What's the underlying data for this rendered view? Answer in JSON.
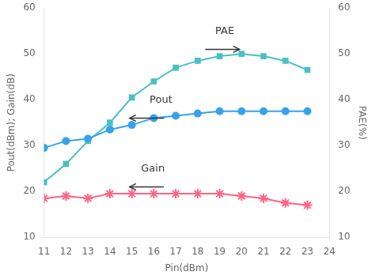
{
  "chart_data": {
    "type": "line",
    "x": [
      11,
      12,
      13,
      14,
      15,
      16,
      17,
      18,
      19,
      20,
      21,
      22,
      23
    ],
    "series": [
      {
        "name": "Pout",
        "values": [
          29.5,
          31.0,
          31.5,
          33.5,
          34.5,
          36.0,
          36.5,
          37.0,
          37.5,
          37.5,
          37.5,
          37.5,
          37.5
        ],
        "marker": "circle",
        "line_style": "solid"
      },
      {
        "name": "Gain",
        "values": [
          18.5,
          19.0,
          18.5,
          19.5,
          19.5,
          19.5,
          19.5,
          19.5,
          19.5,
          19.0,
          18.5,
          17.5,
          17.0
        ],
        "marker": "star",
        "line_style": "solid"
      },
      {
        "name": "PAE",
        "values": [
          22.0,
          26.0,
          31.0,
          35.0,
          40.5,
          44.0,
          47.0,
          48.5,
          49.5,
          50.0,
          49.5,
          48.5,
          46.5
        ],
        "marker": "square",
        "line_style": "solid",
        "axis": "y2"
      }
    ],
    "xlabel": "Pin(dBm)",
    "ylabel": "Pout(dBm); Gain(dB)",
    "y2label": "PAE(%)",
    "xlim": [
      11,
      24
    ],
    "xticks": [
      11,
      12,
      13,
      14,
      15,
      16,
      17,
      18,
      19,
      20,
      21,
      22,
      23,
      24
    ],
    "ylim": [
      10,
      60
    ],
    "yticks": [
      10,
      20,
      30,
      40,
      50,
      60
    ],
    "y2lim": [
      10,
      60
    ],
    "y2ticks": [
      10,
      20,
      30,
      40,
      50,
      60
    ],
    "grid": false,
    "annotations": [
      "PAE",
      "Pout",
      "Gain"
    ]
  }
}
